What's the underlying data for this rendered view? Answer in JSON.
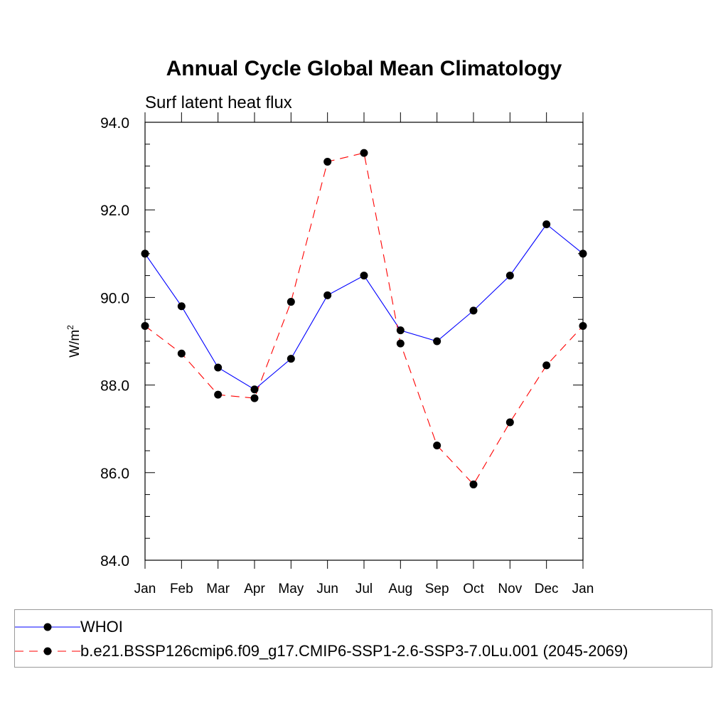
{
  "chart_data": {
    "type": "line",
    "title": "Annual Cycle Global Mean Climatology",
    "subtitle": "Surf latent heat flux",
    "ylabel": "W/m",
    "ylabel_superscript": "2",
    "ylim": [
      84.0,
      94.0
    ],
    "yticks": [
      "84.0",
      "86.0",
      "88.0",
      "90.0",
      "92.0",
      "94.0"
    ],
    "ytick_values": [
      84,
      86,
      88,
      90,
      92,
      94
    ],
    "categories": [
      "Jan",
      "Feb",
      "Mar",
      "Apr",
      "May",
      "Jun",
      "Jul",
      "Aug",
      "Sep",
      "Oct",
      "Nov",
      "Dec",
      "Jan"
    ],
    "grid": false,
    "legend_position": "bottom",
    "series": [
      {
        "name": "WHOI",
        "color": "#0000ff",
        "dash": "solid",
        "values": [
          91.0,
          89.8,
          88.4,
          87.9,
          88.6,
          90.05,
          90.5,
          89.25,
          89.0,
          89.7,
          90.5,
          91.67,
          91.0
        ]
      },
      {
        "name": "b.e21.BSSP126cmip6.f09_g17.CMIP6-SSP1-2.6-SSP3-7.0Lu.001 (2045-2069)",
        "color": "#ff0000",
        "dash": "dashed",
        "values": [
          89.35,
          88.72,
          87.78,
          87.7,
          89.9,
          93.1,
          93.3,
          88.95,
          86.62,
          85.73,
          87.15,
          88.45,
          89.35
        ]
      }
    ]
  }
}
